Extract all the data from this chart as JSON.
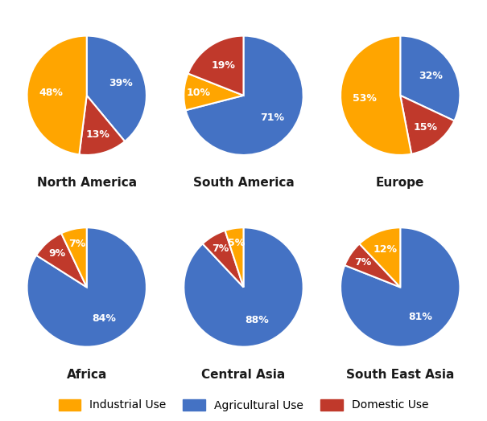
{
  "regions": [
    "North America",
    "South America",
    "Europe",
    "Africa",
    "Central Asia",
    "South East Asia"
  ],
  "data": {
    "North America": {
      "Agricultural": 39,
      "Domestic": 13,
      "Industrial": 48
    },
    "South America": {
      "Agricultural": 71,
      "Industrial": 10,
      "Domestic": 19
    },
    "Europe": {
      "Agricultural": 32,
      "Domestic": 15,
      "Industrial": 53
    },
    "Africa": {
      "Agricultural": 84,
      "Domestic": 9,
      "Industrial": 7
    },
    "Central Asia": {
      "Agricultural": 88,
      "Domestic": 7,
      "Industrial": 5
    },
    "South East Asia": {
      "Agricultural": 81,
      "Domestic": 7,
      "Industrial": 12
    }
  },
  "order": {
    "North America": [
      "Agricultural",
      "Domestic",
      "Industrial"
    ],
    "South America": [
      "Agricultural",
      "Industrial",
      "Domestic"
    ],
    "Europe": [
      "Agricultural",
      "Domestic",
      "Industrial"
    ],
    "Africa": [
      "Agricultural",
      "Domestic",
      "Industrial"
    ],
    "Central Asia": [
      "Agricultural",
      "Domestic",
      "Industrial"
    ],
    "South East Asia": [
      "Agricultural",
      "Domestic",
      "Industrial"
    ]
  },
  "startangles": {
    "North America": 90,
    "South America": 90,
    "Europe": 90,
    "Africa": 90,
    "Central Asia": 90,
    "South East Asia": 90
  },
  "colors": {
    "Industrial": "#FFA500",
    "Agricultural": "#4472C4",
    "Domestic": "#C0392B"
  },
  "label_color": "white",
  "title_color": "#1a1a1a",
  "background_color": "#ffffff",
  "legend_labels": [
    "Industrial Use",
    "Agricultural Use",
    "Domestic Use"
  ],
  "legend_keys": [
    "Industrial",
    "Agricultural",
    "Domestic"
  ],
  "label_fontsize": 9,
  "title_fontsize": 11
}
